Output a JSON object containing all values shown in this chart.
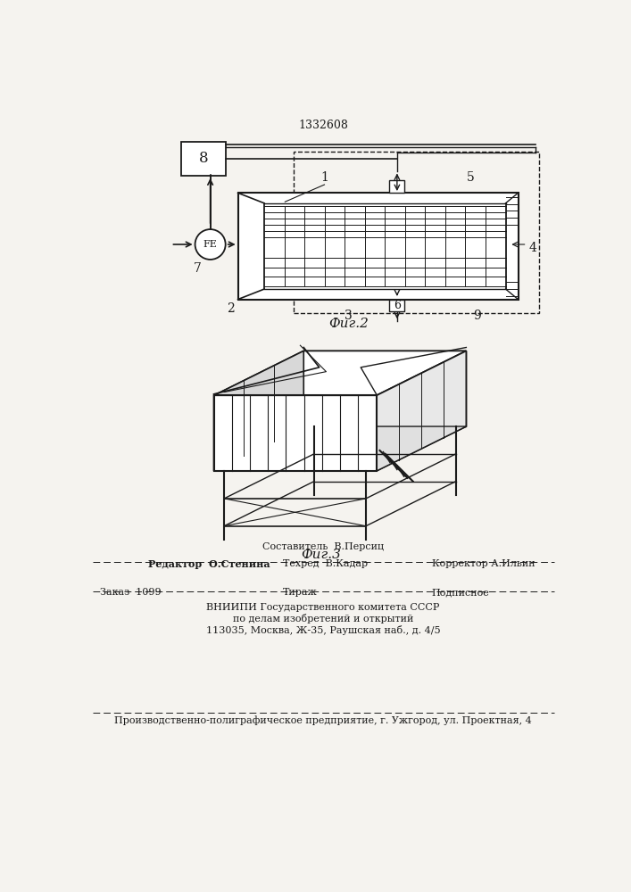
{
  "bg_color": "#f5f3ef",
  "patent_number": "1332608",
  "fig2_label": "Фиг.2",
  "fig3_label": "Фиг.3",
  "footer_line1": "Составитель  В.Персиц",
  "footer_editor": "Редактор  О.Стенина",
  "footer_techred": "Техред  В.Кадар",
  "footer_corrector": "Корректор А.Ильин",
  "footer_order": "Заказ  1099",
  "footer_tirazh": "Тираж",
  "footer_podpisnoe": "Подписное",
  "footer_vniip1": "ВНИИПИ Государственного комитета СССР",
  "footer_vniip2": "по делам изобретений и открытий",
  "footer_vniip3": "113035, Москва, Ж-35, Раушская наб., д. 4/5",
  "footer_prod": "Производственно-полиграфическое предприятие, г. Ужгород, ул. Проектная, 4"
}
